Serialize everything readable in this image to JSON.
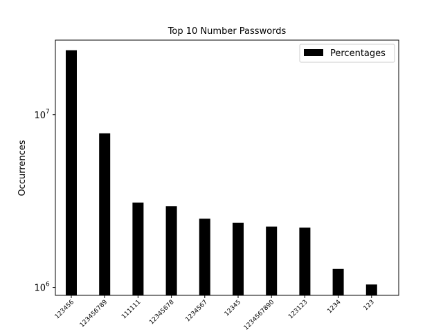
{
  "chart_data": {
    "type": "bar",
    "title": "Top 10 Number Passwords",
    "xlabel": "",
    "ylabel": "Occurrences",
    "yscale": "log",
    "ylim": [
      900000,
      27000000
    ],
    "yticks": [
      {
        "value": 1000000,
        "base": "10",
        "exp": "6"
      },
      {
        "value": 10000000,
        "base": "10",
        "exp": "7"
      }
    ],
    "grid": false,
    "legend": {
      "position": "top-right"
    },
    "categories": [
      "123456",
      "123456789",
      "111111",
      "12345678",
      "1234567",
      "12345",
      "1234567890",
      "123123",
      "1234",
      "123"
    ],
    "series": [
      {
        "name": "Percentages",
        "color": "#000000",
        "values": [
          23600000,
          7800000,
          3100000,
          2950000,
          2500000,
          2370000,
          2250000,
          2220000,
          1280000,
          1040000
        ]
      }
    ]
  }
}
